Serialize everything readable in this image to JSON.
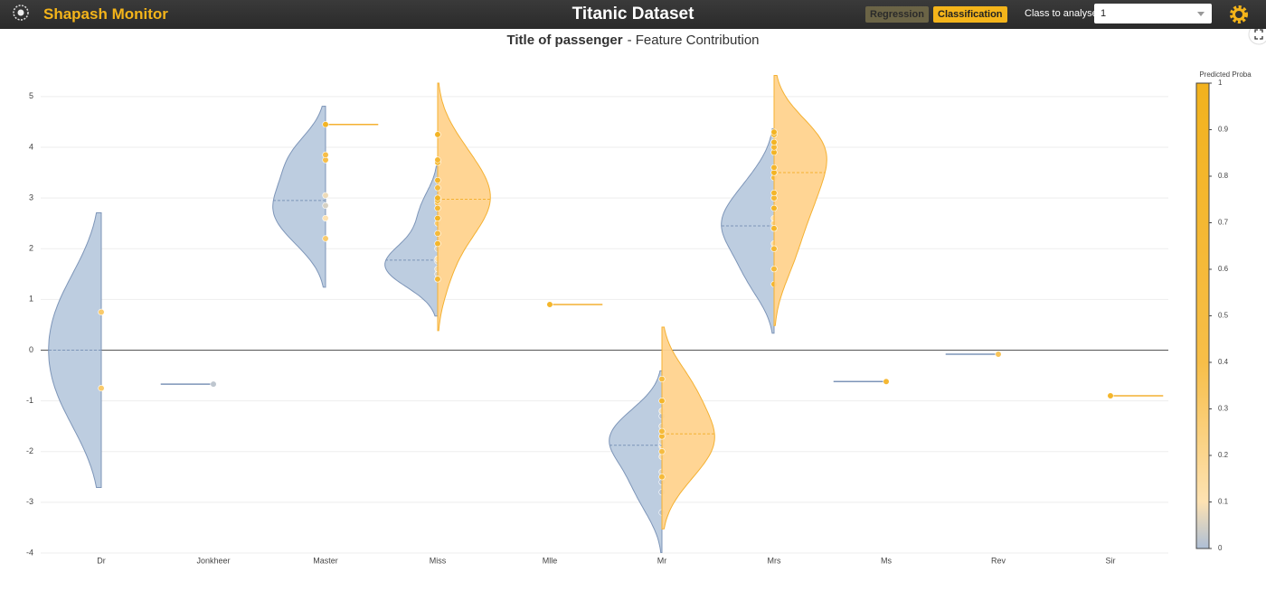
{
  "header": {
    "brand": "Shapash Monitor",
    "title": "Titanic Dataset",
    "buttons": [
      "Regression",
      "Classification"
    ],
    "class_label": "Class to analyse",
    "class_value": "1"
  },
  "chart_data": {
    "type": "violin",
    "title_feature": "Title of passenger",
    "title_suffix": "- Feature Contribution",
    "categories": [
      "Dr",
      "Jonkheer",
      "Master",
      "Miss",
      "Mlle",
      "Mr",
      "Mrs",
      "Ms",
      "Rev",
      "Sir"
    ],
    "series": [
      {
        "side": "left",
        "color": "#b9cade",
        "line_color": "#7d95b8",
        "values": [
          [
            0.75,
            -0.75
          ],
          [
            -0.67
          ],
          [
            2.2,
            2.6,
            2.85,
            3.05,
            3.75,
            3.85
          ],
          [
            1.4,
            1.5,
            1.6,
            1.75,
            1.8,
            2.0,
            2.5,
            2.9
          ],
          [],
          [
            -3.2,
            -2.8,
            -2.6,
            -2.4,
            -2.1,
            -1.9,
            -1.85,
            -1.8,
            -1.7,
            -1.5,
            -1.3,
            -1.2
          ],
          [
            1.3,
            1.6,
            2.1,
            2.4,
            2.5,
            2.6,
            3.0,
            3.4
          ],
          [
            -0.62
          ],
          [
            -0.08
          ],
          []
        ],
        "proba": [
          [
            0.3,
            0.3
          ],
          [
            0.02
          ],
          [
            0.3,
            0.1,
            0.05,
            0.08,
            0.4,
            0.4
          ],
          [
            0.1,
            0.05,
            0.08,
            0.06,
            0.1,
            0.05,
            0.3,
            0.4
          ],
          [],
          [
            0.0,
            0.0,
            0.0,
            0.05,
            0.08,
            0.1,
            0.0,
            0.06,
            0.0,
            0.05,
            0.0,
            0.08
          ],
          [
            0.8,
            0.6,
            0.15,
            0.1,
            0.2,
            0.1,
            0.3,
            0.6
          ],
          [
            0.7
          ],
          [
            0.35
          ],
          []
        ]
      },
      {
        "side": "right",
        "color": "#ffd38e",
        "line_color": "#f4b132",
        "values": [
          [],
          [],
          [
            4.45
          ],
          [
            1.4,
            2.1,
            2.3,
            2.6,
            2.8,
            2.95,
            3.0,
            3.2,
            3.35,
            3.7,
            3.75,
            4.25
          ],
          [
            0.9
          ],
          [
            -2.5,
            -2.0,
            -1.7,
            -1.6,
            -1.0,
            -0.57
          ],
          [
            1.6,
            2.0,
            2.4,
            2.8,
            3.0,
            3.1,
            3.5,
            3.6,
            3.9,
            4.0,
            4.1,
            4.25,
            4.3
          ],
          [],
          [],
          [
            -0.9
          ]
        ],
        "proba": [
          [],
          [],
          [
            0.9
          ],
          [
            0.7,
            0.8,
            0.6,
            0.9,
            0.7,
            0.8,
            0.9,
            0.6,
            0.8,
            0.9,
            0.7,
            0.9
          ],
          [
            0.8
          ],
          [
            0.6,
            0.5,
            0.7,
            0.6,
            0.8,
            0.5
          ],
          [
            0.6,
            0.7,
            0.8,
            0.9,
            0.7,
            0.8,
            0.9,
            0.8,
            0.9,
            0.7,
            0.9,
            0.8,
            0.9
          ],
          [],
          [],
          [
            0.8
          ]
        ]
      }
    ],
    "ylim": [
      -4,
      5.3
    ],
    "yticks": [
      -4,
      -3,
      -2,
      -1,
      0,
      1,
      2,
      3,
      4,
      5
    ],
    "grid": true,
    "zeroline": true,
    "colorbar_title": "Predicted Proba",
    "colorlim": [
      0,
      1
    ],
    "colorticks": [
      0,
      0.1,
      0.2,
      0.3,
      0.4,
      0.5,
      0.6,
      0.7,
      0.8,
      0.9,
      1
    ],
    "colorscale": [
      [
        0,
        "#aebfd6"
      ],
      [
        0.1,
        "#fde2b2"
      ],
      [
        0.4,
        "#f7be48"
      ],
      [
        1,
        "#f2b21d"
      ]
    ]
  }
}
